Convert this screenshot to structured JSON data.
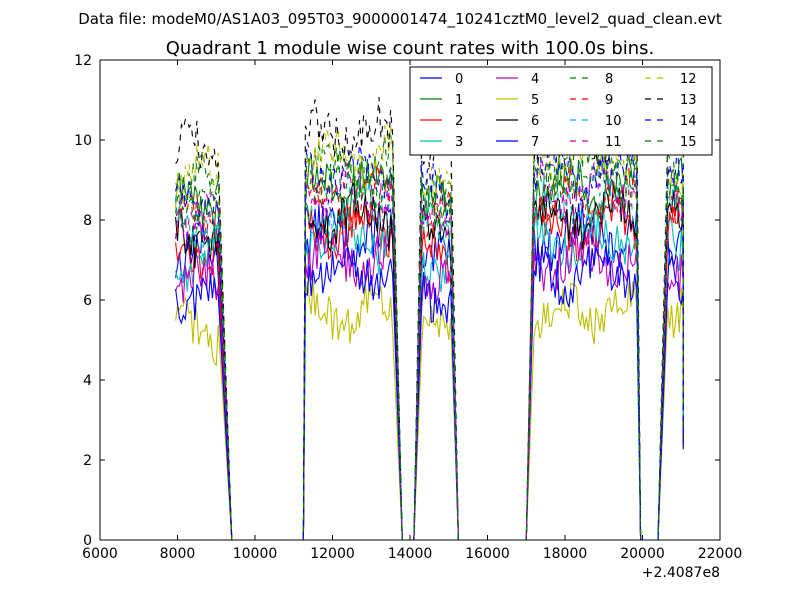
{
  "figure": {
    "suptitle": "Data file: modeM0/AS1A03_095T03_9000001474_10241cztM0_level2_quad_clean.evt",
    "background": "#ffffff"
  },
  "chart_data": {
    "type": "line",
    "title": "Quadrant 1 module wise count rates with 100.0s bins.",
    "xlabel": "",
    "ylabel": "",
    "xlim": [
      6000,
      22000
    ],
    "ylim": [
      0,
      12
    ],
    "x_offset_label": "+2.4087e8",
    "xticks": [
      "6000",
      "8000",
      "10000",
      "12000",
      "14000",
      "16000",
      "18000",
      "20000",
      "22000"
    ],
    "yticks": [
      "0",
      "2",
      "4",
      "6",
      "8",
      "10",
      "12"
    ],
    "grid": false,
    "legend_location": "upper-right",
    "bin_seconds": 100,
    "segments": [
      {
        "x": [
          7950,
          9050
        ],
        "x_fall_end": 9400
      },
      {
        "x": [
          11300,
          13550
        ],
        "x_rise_start": 11250,
        "x_fall_end": 13800
      },
      {
        "x": [
          14300,
          15050
        ],
        "x_rise_start": 14100,
        "x_fall_end": 15250
      },
      {
        "x": [
          17200,
          19850
        ],
        "x_rise_start": 17000,
        "x_fall_end": 19950
      },
      {
        "x": [
          20650,
          21050
        ],
        "x_rise_start": 20400,
        "x_fall_end": 21050
      }
    ],
    "series": [
      {
        "name": "0",
        "color": "#0000ff",
        "dash": "solid",
        "level": 7.1
      },
      {
        "name": "1",
        "color": "#008000",
        "dash": "solid",
        "level": 8.4
      },
      {
        "name": "2",
        "color": "#ff0000",
        "dash": "solid",
        "level": 7.3
      },
      {
        "name": "3",
        "color": "#00bfbf",
        "dash": "solid",
        "level": 7.0
      },
      {
        "name": "4",
        "color": "#bf00bf",
        "dash": "solid",
        "level": 6.5
      },
      {
        "name": "5",
        "color": "#bfbf00",
        "dash": "solid",
        "level": 5.2
      },
      {
        "name": "6",
        "color": "#000000",
        "dash": "solid",
        "level": 7.6
      },
      {
        "name": "7",
        "color": "#0000ff",
        "dash": "solid",
        "level": 6.2
      },
      {
        "name": "8",
        "color": "#008000",
        "dash": "dashed",
        "level": 8.9
      },
      {
        "name": "9",
        "color": "#ff0000",
        "dash": "dashed",
        "level": 8.0
      },
      {
        "name": "10",
        "color": "#00bfbf",
        "dash": "dashed",
        "level": 7.8
      },
      {
        "name": "11",
        "color": "#bf00bf",
        "dash": "dashed",
        "level": 8.2
      },
      {
        "name": "12",
        "color": "#bfbf00",
        "dash": "dashed",
        "level": 9.1
      },
      {
        "name": "13",
        "color": "#000000",
        "dash": "dashed",
        "level": 9.7
      },
      {
        "name": "14",
        "color": "#0000ff",
        "dash": "dashed",
        "level": 8.7
      },
      {
        "name": "15",
        "color": "#008000",
        "dash": "dashed",
        "level": 8.5
      }
    ]
  }
}
